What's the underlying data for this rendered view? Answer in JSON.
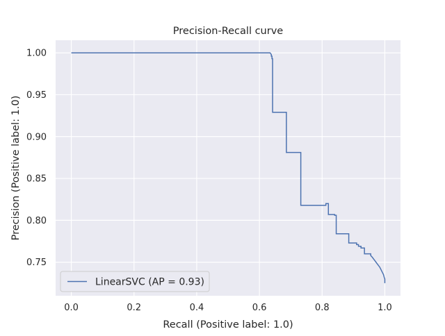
{
  "chart_data": {
    "type": "line",
    "title": "Precision-Recall curve",
    "xlabel": "Recall (Positive label: 1.0)",
    "ylabel": "Precision (Positive label: 1.0)",
    "xlim": [
      -0.05,
      1.05
    ],
    "ylim": [
      0.71,
      1.015
    ],
    "xticks": [
      "0.0",
      "0.2",
      "0.4",
      "0.6",
      "0.8",
      "1.0"
    ],
    "yticks": [
      "0.75",
      "0.80",
      "0.85",
      "0.90",
      "0.95",
      "1.00"
    ],
    "grid": true,
    "legend_position": "lower-left",
    "series": [
      {
        "name": "LinearSVC (AP = 0.93)",
        "color": "#4c72b0",
        "x": [
          0.0,
          0.634,
          0.638,
          0.638,
          0.64,
          0.64,
          0.642,
          0.642,
          0.686,
          0.686,
          0.732,
          0.732,
          0.812,
          0.812,
          0.82,
          0.82,
          0.84,
          0.84,
          0.845,
          0.845,
          0.885,
          0.885,
          0.91,
          0.91,
          0.916,
          0.916,
          0.924,
          0.924,
          0.935,
          0.935,
          0.955,
          0.955,
          0.96,
          0.964,
          0.968,
          0.972,
          0.976,
          0.98,
          0.984,
          0.988,
          0.992,
          0.996,
          0.998,
          1.0,
          1.0
        ],
        "y": [
          1.0,
          1.0,
          0.998,
          0.996,
          0.996,
          0.993,
          0.993,
          0.929,
          0.929,
          0.881,
          0.881,
          0.818,
          0.818,
          0.82,
          0.82,
          0.807,
          0.807,
          0.806,
          0.806,
          0.784,
          0.784,
          0.773,
          0.773,
          0.771,
          0.771,
          0.769,
          0.769,
          0.767,
          0.767,
          0.76,
          0.76,
          0.758,
          0.756,
          0.754,
          0.752,
          0.75,
          0.748,
          0.746,
          0.744,
          0.741,
          0.738,
          0.735,
          0.732,
          0.73,
          0.725
        ]
      }
    ]
  }
}
